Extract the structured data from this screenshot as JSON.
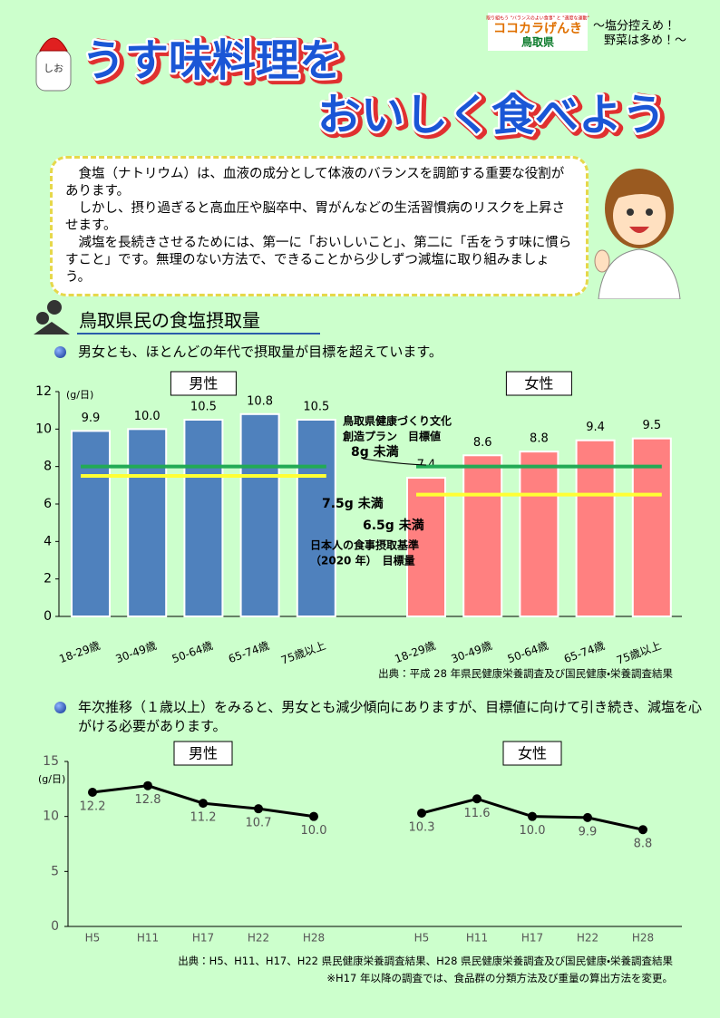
{
  "header": {
    "logo_tagline": "取り組もう \"バランスのよい食事\" と \"適度な運動\"",
    "logo_name": "ココカラげんき",
    "logo_pref": "鳥取県",
    "motto": [
      "〜塩分控えめ！",
      "野菜は多め！〜"
    ],
    "shaker": "しお",
    "title": [
      "うす味料理を",
      "おいしく食べよう"
    ]
  },
  "intro": {
    "paragraphs": [
      "　食塩（ナトリウム）は、血液の成分として体液のバランスを調節する重要な役割があります。",
      "　しかし、摂り過ぎると高血圧や脳卒中、胃がんなどの生活習慣病のリスクを上昇させます。",
      "　減塩を長続きさせるためには、第一に「おいしいこと」、第二に「舌をうす味に慣らすこと」です。無理のない方法で、できることから少しずつ減塩に取り組みましょう。"
    ]
  },
  "section1": {
    "heading": "鳥取県民の食塩摂取量",
    "bullet": "男女とも、ほとんどの年代で摂取量が目標を超えています。",
    "source": "出典：平成 28 年県民健康栄養調査及び国民健康・栄養調査結果"
  },
  "section2": {
    "bullet": "年次推移（１歳以上）をみると、男女とも減少傾向にありますが、目標値に向けて引き続き、減塩を心がける必要があります。",
    "sources": [
      "出典：H5、H11、H17、H22 県民健康栄養調査結果、H28 県民健康栄養調査及び国民健康・栄養調査結果",
      "※H17 年以降の調査では、食品群の分類方法及び重量の算出方法を変更。"
    ]
  },
  "chart_data": [
    {
      "type": "bar",
      "y_label": "(g/日)",
      "categories": [
        "18-29歳",
        "30-49歳",
        "50-64歳",
        "65-74歳",
        "75歳以上"
      ],
      "series": [
        {
          "name": "男性",
          "color": "#4f81bd",
          "values": [
            9.9,
            10.0,
            10.5,
            10.8,
            10.5
          ],
          "value_labels": [
            "9.9",
            "10.0",
            "10.5",
            "10.8",
            "10.5"
          ]
        },
        {
          "name": "女性",
          "color": "#ff8080",
          "values": [
            7.4,
            8.6,
            8.8,
            9.4,
            9.5
          ]
        }
      ],
      "ylim": [
        0,
        12
      ],
      "yticks": [
        0,
        2,
        4,
        6,
        8,
        10,
        12
      ],
      "targets": [
        {
          "label": [
            "鳥取県健康づくり文化",
            "創造プラン　目標値"
          ],
          "color": "#22aa55",
          "value": 8,
          "value_label": "8g 未満"
        },
        {
          "label": [
            "日本人の食事摂取基準",
            "（2020 年）　目標量"
          ],
          "color": "#ffff33",
          "values": [
            7.5,
            6.5
          ],
          "value_labels": [
            "7.5g 未満",
            "6.5g 未満"
          ]
        }
      ]
    },
    {
      "type": "line",
      "y_label": "(g/日)",
      "categories": [
        "H5",
        "H11",
        "H17",
        "H22",
        "H28"
      ],
      "series": [
        {
          "name": "男性",
          "color": "#000000",
          "values": [
            12.2,
            12.8,
            11.2,
            10.7,
            10.0
          ],
          "value_labels": [
            "12.2",
            "12.8",
            "11.2",
            "10.7",
            "10.0"
          ]
        },
        {
          "name": "女性",
          "color": "#000000",
          "values": [
            10.3,
            11.6,
            10.0,
            9.9,
            8.8
          ],
          "value_labels": [
            "10.3",
            "11.6",
            "10.0",
            "9.9",
            "8.8"
          ]
        }
      ],
      "ylim": [
        0,
        15
      ],
      "yticks": [
        0,
        5,
        10,
        15
      ]
    }
  ]
}
